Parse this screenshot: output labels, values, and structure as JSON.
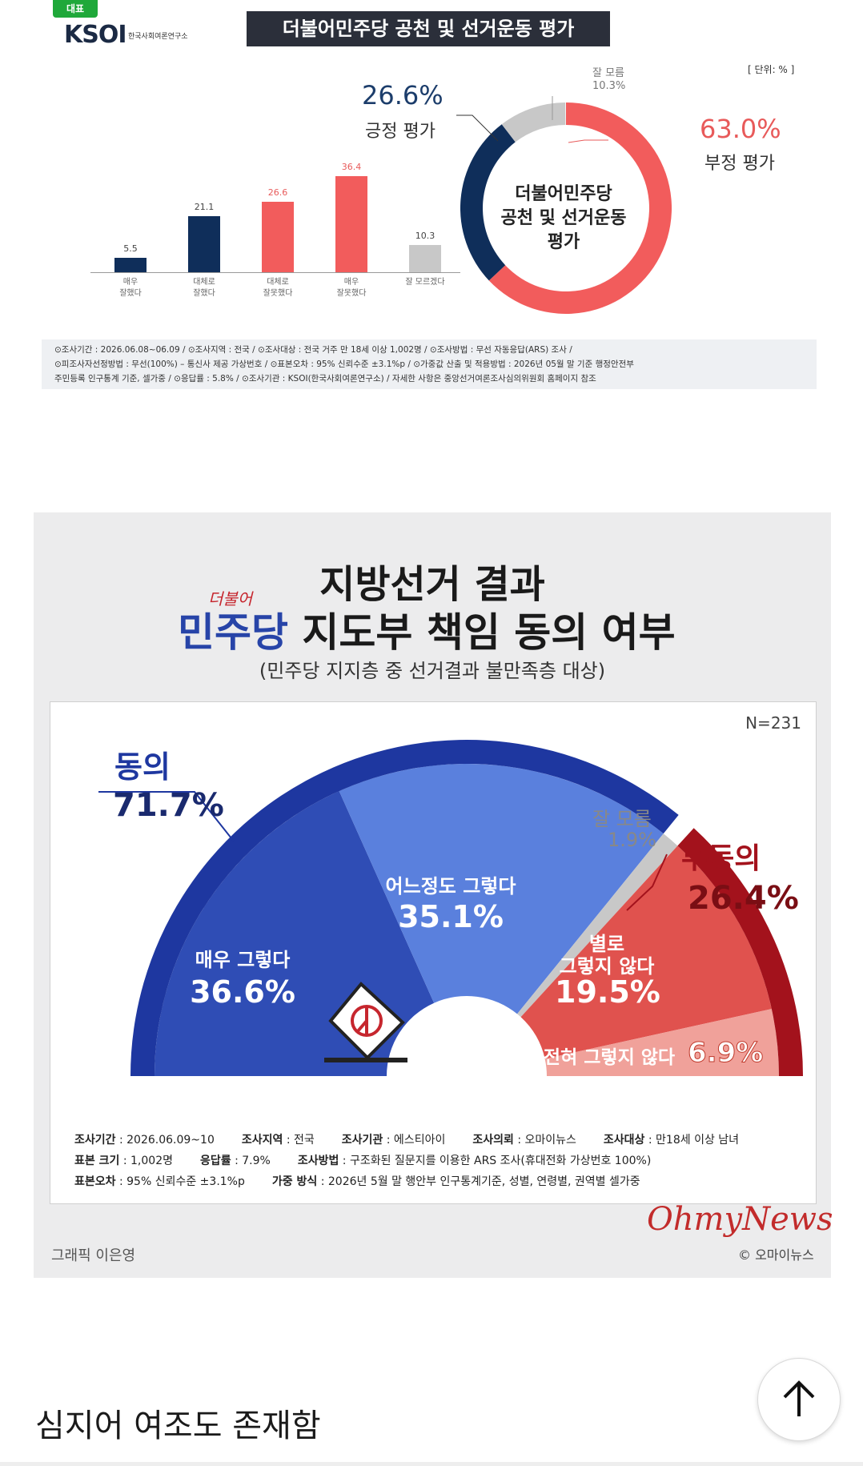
{
  "g1": {
    "badge": "대표",
    "logo": "KSOI",
    "logo_sub": "한국사회여론연구소",
    "title": "더불어민주당 공천 및 선거운동 평가",
    "unit": "[ 단위: % ]",
    "bars": [
      {
        "label1": "매우",
        "label2": "잘했다",
        "value": "5.5",
        "num": 5.5,
        "color": "#0f2e5a"
      },
      {
        "label1": "대체로",
        "label2": "잘했다",
        "value": "21.1",
        "num": 21.1,
        "color": "#0f2e5a"
      },
      {
        "label1": "대체로",
        "label2": "잘못했다",
        "value": "26.6",
        "num": 26.6,
        "color": "#f25c5c"
      },
      {
        "label1": "매우",
        "label2": "잘못했다",
        "value": "36.4",
        "num": 36.4,
        "color": "#f25c5c"
      },
      {
        "label1": "잘 모르겠다",
        "label2": "",
        "value": "10.3",
        "num": 10.3,
        "color": "#c8c8c8"
      }
    ],
    "donut": {
      "positive_value": "26.6%",
      "positive_label": "긍정 평가",
      "negative_value": "63.0%",
      "negative_label": "부정 평가",
      "unknown_label": "잘 모름",
      "unknown_value": "10.3%",
      "center1": "더불어민주당",
      "center2": "공천 및 선거운동",
      "center3": "평가",
      "colors": {
        "positive": "#0f2e5a",
        "negative": "#f25c5c",
        "unknown": "#c8c8c8"
      }
    },
    "notes": [
      "⊙조사기간 : 2026.06.08~06.09 / ⊙조사지역 : 전국 / ⊙조사대상 : 전국 거주 만 18세 이상 1,002명 / ⊙조사방법 : 무선 자동응답(ARS) 조사 /",
      "⊙피조사자선정방법 : 무선(100%) – 통신사 제공 가상번호 / ⊙표본오차 : 95% 신뢰수준 ±3.1%p / ⊙가중값 산출 및 적용방법 : 2026년 05월 말 기준 행정안전부",
      "주민등록 인구통계 기준, 셀가중 / ⊙응답률 : 5.8% / ⊙조사기관 : KSOI(한국사회여론연구소) / 자세한 사항은 중앙선거여론조사심의위원회 홈페이지 참조"
    ]
  },
  "g2": {
    "title1": "지방선거 결과",
    "hand": "더불어",
    "title2_blue": "민주당",
    "title2_rest": " 지도부 책임 동의 여부",
    "subtitle": "(민주당 지지층 중 선거결과 불만족층 대상)",
    "n": "N=231",
    "agree_label": "동의",
    "agree_value": "71.7%",
    "disagree_label": "부동의",
    "disagree_value": "26.4%",
    "unknown_label": "잘 모름",
    "unknown_value": "1.9%",
    "seg_very_label": "매우 그렇다",
    "seg_very_value": "36.6%",
    "seg_some_label": "어느정도 그렇다",
    "seg_some_value": "35.1%",
    "seg_notmuch_label1": "별로",
    "seg_notmuch_label2": "그렇지 않다",
    "seg_notmuch_value": "19.5%",
    "seg_notatall_label": "전혀 그렇지 않다",
    "seg_notatall_value": "6.9%",
    "colors": {
      "very": "#2f4db5",
      "some": "#5a80dd",
      "unknown": "#c8c8c8",
      "notmuch": "#e0524e",
      "notatall": "#f0a19a",
      "outer_agree": "#1e37a0",
      "outer_disagree": "#a3121c"
    },
    "footer": [
      [
        [
          "조사기간",
          " : 2026.06.09~10"
        ],
        [
          "조사지역",
          " : 전국"
        ],
        [
          "조사기관",
          " : 에스티아이"
        ],
        [
          "조사의뢰",
          " : 오마이뉴스"
        ],
        [
          "조사대상",
          " : 만18세 이상 남녀"
        ]
      ],
      [
        [
          "표본 크기",
          " : 1,002명"
        ],
        [
          "응답률",
          " : 7.9%"
        ],
        [
          "조사방법",
          " : 구조화된 질문지를 이용한 ARS 조사(휴대전화 가상번호 100%)"
        ]
      ],
      [
        [
          "표본오차",
          " : 95% 신뢰수준 ±3.1%p"
        ],
        [
          "가중 방식",
          " : 2026년 5월 말 행안부 인구통계기준, 성별, 연령별, 권역별 셀가중"
        ]
      ]
    ],
    "graphic_by": "그래픽 이은영",
    "brand": "OhmyNews",
    "copyright": "© 오마이뉴스"
  },
  "caption": "심지어 여조도 존재함",
  "top_button_icon": "arrow-up-icon"
}
